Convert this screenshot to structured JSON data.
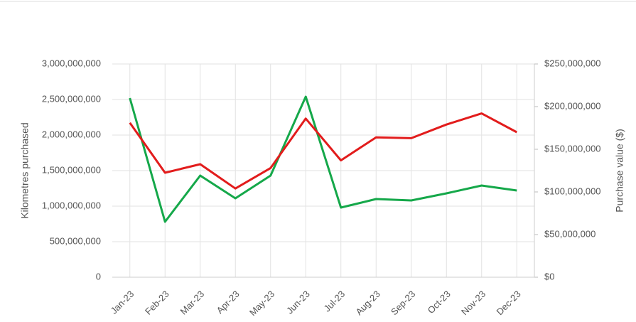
{
  "chart_data": {
    "type": "line",
    "categories": [
      "Jan-23",
      "Feb-23",
      "Mar-23",
      "Apr-23",
      "May-23",
      "Jun-23",
      "Jul-23",
      "Aug-23",
      "Sep-23",
      "Oct-23",
      "Nov-23",
      "Dec-23"
    ],
    "series": [
      {
        "color": "#15a84a",
        "values": [
          2520000000,
          780000000,
          1430000000,
          1110000000,
          1430000000,
          2540000000,
          980000000,
          1100000000,
          1080000000,
          1180000000,
          1290000000,
          1220000000
        ]
      },
      {
        "color": "#e21c1c",
        "axis": "y2",
        "values": [
          181000000,
          122500000,
          132500000,
          104000000,
          128000000,
          186000000,
          137000000,
          164000000,
          163000000,
          179000000,
          192000000,
          170000000
        ]
      }
    ],
    "ylabel": "Kilometres purchased",
    "y2label": "Purchase value ($)",
    "ylim": [
      0,
      3000000000
    ],
    "yticks": [
      0,
      {
        "value": 500000000,
        "label": "500,000,000"
      },
      {
        "value": 1000000000,
        "label": "1,000,000,000"
      },
      {
        "value": 1500000000,
        "label": "1,500,000,000"
      },
      {
        "value": 2000000000,
        "label": "2,000,000,000"
      },
      {
        "value": 2500000000,
        "label": "2,500,000,000"
      },
      {
        "value": 3000000000,
        "label": "3,000,000,000"
      }
    ],
    "y2lim": [
      0,
      250000000
    ],
    "y2ticks": [
      {
        "value": 0,
        "label": "$0"
      },
      {
        "value": 50000000,
        "label": "$50,000,000"
      },
      {
        "value": 100000000,
        "label": "$100,000,000"
      },
      {
        "value": 150000000,
        "label": "$150,000,000"
      },
      {
        "value": 200000000,
        "label": "$200,000,000"
      },
      {
        "value": 250000000,
        "label": "$250,000,000"
      }
    ],
    "grid": true
  }
}
